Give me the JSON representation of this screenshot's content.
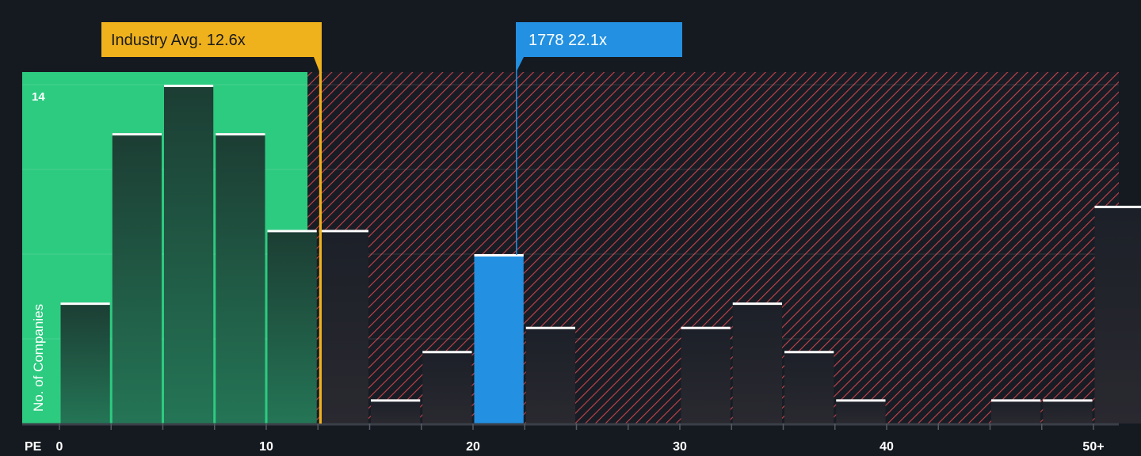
{
  "chart_data": {
    "type": "bar",
    "xlabel": "PE",
    "ylabel": "No. of Companies",
    "x_ticks": [
      "0",
      "10",
      "20",
      "30",
      "40",
      "50+"
    ],
    "y_tick_label": "14",
    "ylim": [
      0,
      14
    ],
    "bin_width": 2.5,
    "bins": [
      {
        "start": 0,
        "value": 5
      },
      {
        "start": 2.5,
        "value": 12
      },
      {
        "start": 5,
        "value": 14
      },
      {
        "start": 7.5,
        "value": 12
      },
      {
        "start": 10,
        "value": 8
      },
      {
        "start": 12.5,
        "value": 8
      },
      {
        "start": 15,
        "value": 1
      },
      {
        "start": 17.5,
        "value": 3
      },
      {
        "start": 20,
        "value": 7,
        "highlight": true
      },
      {
        "start": 22.5,
        "value": 4
      },
      {
        "start": 25,
        "value": 0
      },
      {
        "start": 27.5,
        "value": 0
      },
      {
        "start": 30,
        "value": 4
      },
      {
        "start": 32.5,
        "value": 5
      },
      {
        "start": 35,
        "value": 3
      },
      {
        "start": 37.5,
        "value": 1
      },
      {
        "start": 40,
        "value": 0
      },
      {
        "start": 42.5,
        "value": 0
      },
      {
        "start": 45,
        "value": 1
      },
      {
        "start": 47.5,
        "value": 1
      },
      {
        "start": 50,
        "value": 9
      }
    ],
    "grid": true,
    "industry_avg": {
      "label": "Industry Avg. 12.6x",
      "value": 12.6
    },
    "company": {
      "label": "1778 22.1x",
      "value": 22.1
    },
    "fair_region_end": 12,
    "colors": {
      "background": "#151a21",
      "fair": "#2dcb80",
      "overvalued_hatch": "#d9474f",
      "industry": "#f0b21c",
      "company": "#2390e1"
    }
  }
}
